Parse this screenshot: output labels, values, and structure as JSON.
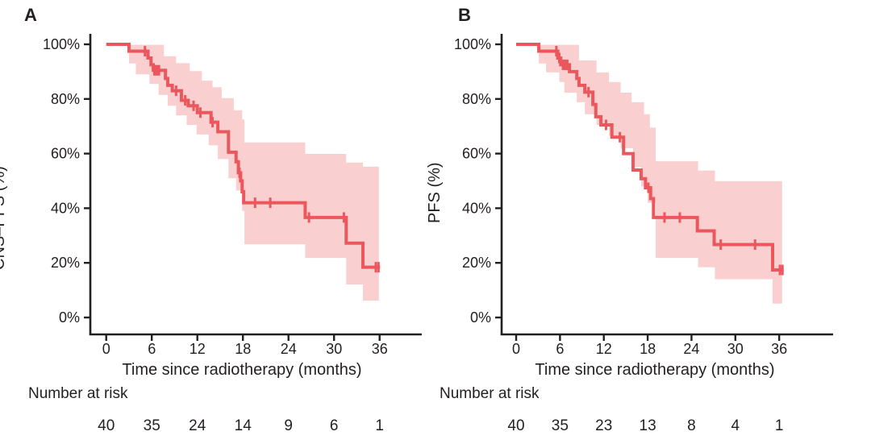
{
  "figure": {
    "background": "#ffffff",
    "text_color": "#231f20",
    "axis_color": "#231f20"
  },
  "chart_data": [
    {
      "type": "line",
      "subtype": "kaplan-meier-step",
      "panel_label": "A",
      "ylabel": "CNS–PFS (%)",
      "xlabel": "Time since radiotherapy (months)",
      "x_ticks": [
        0,
        6,
        12,
        18,
        24,
        30,
        36
      ],
      "y_ticks": [
        {
          "value": 0,
          "label": "0%"
        },
        {
          "value": 20,
          "label": "20%"
        },
        {
          "value": 40,
          "label": "40%"
        },
        {
          "value": 60,
          "label": "60%"
        },
        {
          "value": 80,
          "label": "80%"
        },
        {
          "value": 100,
          "label": "100%"
        }
      ],
      "xlim": [
        -2,
        41.5
      ],
      "ylim": [
        0,
        100
      ],
      "grid": false,
      "legend": "none",
      "risk_label": "Number at risk",
      "risk_numbers": [
        40,
        35,
        24,
        14,
        9,
        6,
        1
      ],
      "series": {
        "name": "CNS-PFS",
        "color": "#ea575c",
        "start": [
          0,
          100
        ],
        "end_time": 36.05,
        "steps": [
          [
            3,
            97.5
          ],
          [
            5.5,
            95
          ],
          [
            5.9,
            92.5
          ],
          [
            6.2,
            90.5
          ],
          [
            7.8,
            87.5
          ],
          [
            8.1,
            85
          ],
          [
            8.7,
            83
          ],
          [
            9.9,
            79.5
          ],
          [
            10.8,
            77.5
          ],
          [
            12,
            75
          ],
          [
            13.8,
            71.5
          ],
          [
            14.7,
            68
          ],
          [
            16.1,
            60.5
          ],
          [
            17.1,
            57
          ],
          [
            17.4,
            53
          ],
          [
            17.7,
            50
          ],
          [
            17.9,
            46
          ],
          [
            18.1,
            42
          ],
          [
            26.2,
            36.6
          ],
          [
            31.6,
            27.2
          ],
          [
            33.8,
            18.4
          ]
        ],
        "censor_marks": [
          [
            5.1,
            97.5
          ],
          [
            6.35,
            90.5
          ],
          [
            6.55,
            90.5
          ],
          [
            6.75,
            90.5
          ],
          [
            6.95,
            90.5
          ],
          [
            9.2,
            83
          ],
          [
            10.4,
            79.5
          ],
          [
            11.5,
            77.5
          ],
          [
            12.4,
            75
          ],
          [
            14,
            71.5
          ],
          [
            17.55,
            53
          ],
          [
            19.6,
            42
          ],
          [
            21.6,
            42
          ],
          [
            26.7,
            36.6
          ],
          [
            31.3,
            36.6
          ],
          [
            35.5,
            18.4
          ],
          [
            35.85,
            18.4
          ]
        ]
      },
      "ci": {
        "color": "#f9cfd0",
        "start_time": 3,
        "end_time": 35.9,
        "upper": [
          [
            3,
            99.8
          ],
          [
            7.6,
            95.6
          ],
          [
            9.2,
            93.1
          ],
          [
            11,
            90.2
          ],
          [
            12.6,
            86.7
          ],
          [
            14,
            84.3
          ],
          [
            15.2,
            80.3
          ],
          [
            16.8,
            75.9
          ],
          [
            17.9,
            72.5
          ],
          [
            18.2,
            64.1
          ],
          [
            26.2,
            59.9
          ],
          [
            31.6,
            56.7
          ],
          [
            33.8,
            55.2
          ]
        ],
        "lower": [
          [
            3,
            93
          ],
          [
            3.9,
            89
          ],
          [
            5.7,
            85.5
          ],
          [
            6.9,
            81.5
          ],
          [
            8.1,
            77.5
          ],
          [
            9.2,
            74
          ],
          [
            10.6,
            70.5
          ],
          [
            11.9,
            67
          ],
          [
            13.5,
            63
          ],
          [
            14.7,
            58
          ],
          [
            16.1,
            51
          ],
          [
            17.1,
            46.5
          ],
          [
            17.9,
            39
          ],
          [
            18.2,
            26.8
          ],
          [
            26.2,
            21.8
          ],
          [
            31.6,
            12.1
          ],
          [
            33.8,
            6.2
          ]
        ]
      }
    },
    {
      "type": "line",
      "subtype": "kaplan-meier-step",
      "panel_label": "B",
      "ylabel": "PFS (%)",
      "xlabel": "Time since radiotherapy (months)",
      "x_ticks": [
        0,
        6,
        12,
        18,
        24,
        30,
        36
      ],
      "y_ticks": [
        {
          "value": 0,
          "label": "0%"
        },
        {
          "value": 20,
          "label": "20%"
        },
        {
          "value": 40,
          "label": "40%"
        },
        {
          "value": 60,
          "label": "60%"
        },
        {
          "value": 80,
          "label": "80%"
        },
        {
          "value": 100,
          "label": "100%"
        }
      ],
      "xlim": [
        -2,
        41.5
      ],
      "ylim": [
        0,
        100
      ],
      "grid": false,
      "legend": "none",
      "risk_label": "Number at risk",
      "risk_numbers": [
        40,
        35,
        23,
        13,
        8,
        4,
        1
      ],
      "series": {
        "name": "PFS",
        "color": "#ea575c",
        "start": [
          0,
          100
        ],
        "end_time": 36.6,
        "steps": [
          [
            3.1,
            97.5
          ],
          [
            5.7,
            95
          ],
          [
            6.1,
            92.5
          ],
          [
            7.3,
            90
          ],
          [
            8.3,
            87.5
          ],
          [
            8.6,
            85
          ],
          [
            9.4,
            82.5
          ],
          [
            10.5,
            78
          ],
          [
            10.9,
            73.5
          ],
          [
            11.6,
            70.5
          ],
          [
            13.1,
            66
          ],
          [
            14.7,
            60
          ],
          [
            16,
            54
          ],
          [
            17.1,
            50.8
          ],
          [
            17.7,
            47.5
          ],
          [
            18.4,
            43.5
          ],
          [
            18.8,
            36.6
          ],
          [
            24.8,
            31.7
          ],
          [
            27.1,
            26.7
          ],
          [
            35.1,
            17.4
          ]
        ],
        "censor_marks": [
          [
            5.5,
            97.5
          ],
          [
            5.9,
            95
          ],
          [
            6.4,
            92.5
          ],
          [
            6.7,
            92.5
          ],
          [
            7,
            92.5
          ],
          [
            9.9,
            82.5
          ],
          [
            12.3,
            70.5
          ],
          [
            14.2,
            66
          ],
          [
            18.1,
            47.5
          ],
          [
            20.3,
            36.6
          ],
          [
            22.4,
            36.6
          ],
          [
            28,
            26.7
          ],
          [
            32.7,
            26.7
          ],
          [
            36.1,
            17.4
          ],
          [
            36.45,
            17.4
          ]
        ]
      },
      "ci": {
        "color": "#f9cfd0",
        "start_time": 3.1,
        "end_time": 36.4,
        "upper": [
          [
            3.1,
            99.8
          ],
          [
            8.6,
            94.1
          ],
          [
            11,
            89.7
          ],
          [
            12.7,
            86.2
          ],
          [
            14.3,
            82.3
          ],
          [
            15.8,
            78.8
          ],
          [
            17.5,
            74.4
          ],
          [
            18.3,
            69.5
          ],
          [
            19.1,
            57.2
          ],
          [
            24.9,
            53.8
          ],
          [
            27.2,
            49.9
          ]
        ],
        "lower": [
          [
            3.1,
            93
          ],
          [
            4.1,
            89.7
          ],
          [
            5.9,
            86.2
          ],
          [
            6.6,
            82.3
          ],
          [
            8.3,
            78.8
          ],
          [
            9.4,
            74.4
          ],
          [
            11,
            70.5
          ],
          [
            12.7,
            66.5
          ],
          [
            14.3,
            62
          ],
          [
            16,
            55
          ],
          [
            17.1,
            48
          ],
          [
            18,
            42
          ],
          [
            19.1,
            21.8
          ],
          [
            24.9,
            18.4
          ],
          [
            27.2,
            14
          ],
          [
            35.1,
            5.1
          ]
        ]
      }
    }
  ]
}
